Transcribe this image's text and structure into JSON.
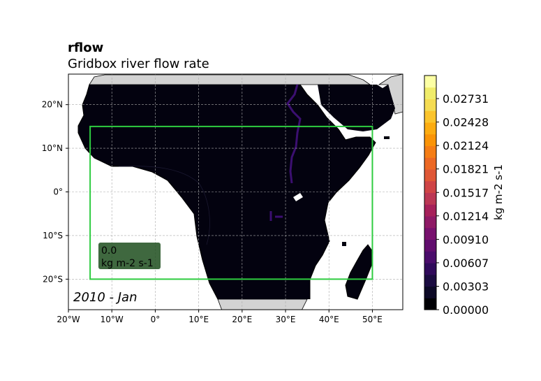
{
  "header": {
    "title": "rflow",
    "subtitle": "Gridbox river flow rate"
  },
  "map": {
    "extent": {
      "lon": [
        -20,
        57
      ],
      "lat": [
        -27,
        27
      ]
    },
    "x_ticks": [
      {
        "lon": -20,
        "label": "20°W"
      },
      {
        "lon": -10,
        "label": "10°W"
      },
      {
        "lon": 0,
        "label": "0°"
      },
      {
        "lon": 10,
        "label": "10°E"
      },
      {
        "lon": 20,
        "label": "20°E"
      },
      {
        "lon": 30,
        "label": "30°E"
      },
      {
        "lon": 40,
        "label": "40°E"
      },
      {
        "lon": 50,
        "label": "50°E"
      }
    ],
    "y_ticks": [
      {
        "lat": 20,
        "label": "20°N"
      },
      {
        "lat": 10,
        "label": "10°N"
      },
      {
        "lat": 0,
        "label": "0°"
      },
      {
        "lat": -10,
        "label": "10°S"
      },
      {
        "lat": -20,
        "label": "20°S"
      }
    ],
    "region_box": {
      "lon": [
        -15,
        50
      ],
      "lat": [
        -20,
        15
      ],
      "color": "#2ecc40"
    },
    "region_value": "0.0",
    "region_units": "kg m-2 s-1",
    "time_stamp": "2010 - Jan",
    "colors": {
      "field": "#03020f",
      "land_outside": "#d3d3d3",
      "river": "#3b0f70",
      "box_fill": "#1d4d1d"
    }
  },
  "colorbar": {
    "label": "kg m-2 s-1",
    "min": 0,
    "max": 0.0303,
    "tick_values": [
      0.0,
      0.00303,
      0.00607,
      0.0091,
      0.01214,
      0.01517,
      0.01821,
      0.02124,
      0.02428,
      0.02731
    ],
    "tick_labels": [
      "0.00000",
      "0.00303",
      "0.00607",
      "0.00910",
      "0.01214",
      "0.01517",
      "0.01821",
      "0.02124",
      "0.02428",
      "0.02731"
    ],
    "band_colors": [
      "#000004",
      "#0c0926",
      "#1b0c41",
      "#300a5b",
      "#4a0c6b",
      "#610d6e",
      "#78116e",
      "#8f1a66",
      "#a6215a",
      "#bb3754",
      "#cf4446",
      "#df5736",
      "#ec6824",
      "#f57d15",
      "#fa9407",
      "#fcac11",
      "#fbc42c",
      "#f5dc52",
      "#f0ec6a",
      "#fcffa4"
    ]
  }
}
